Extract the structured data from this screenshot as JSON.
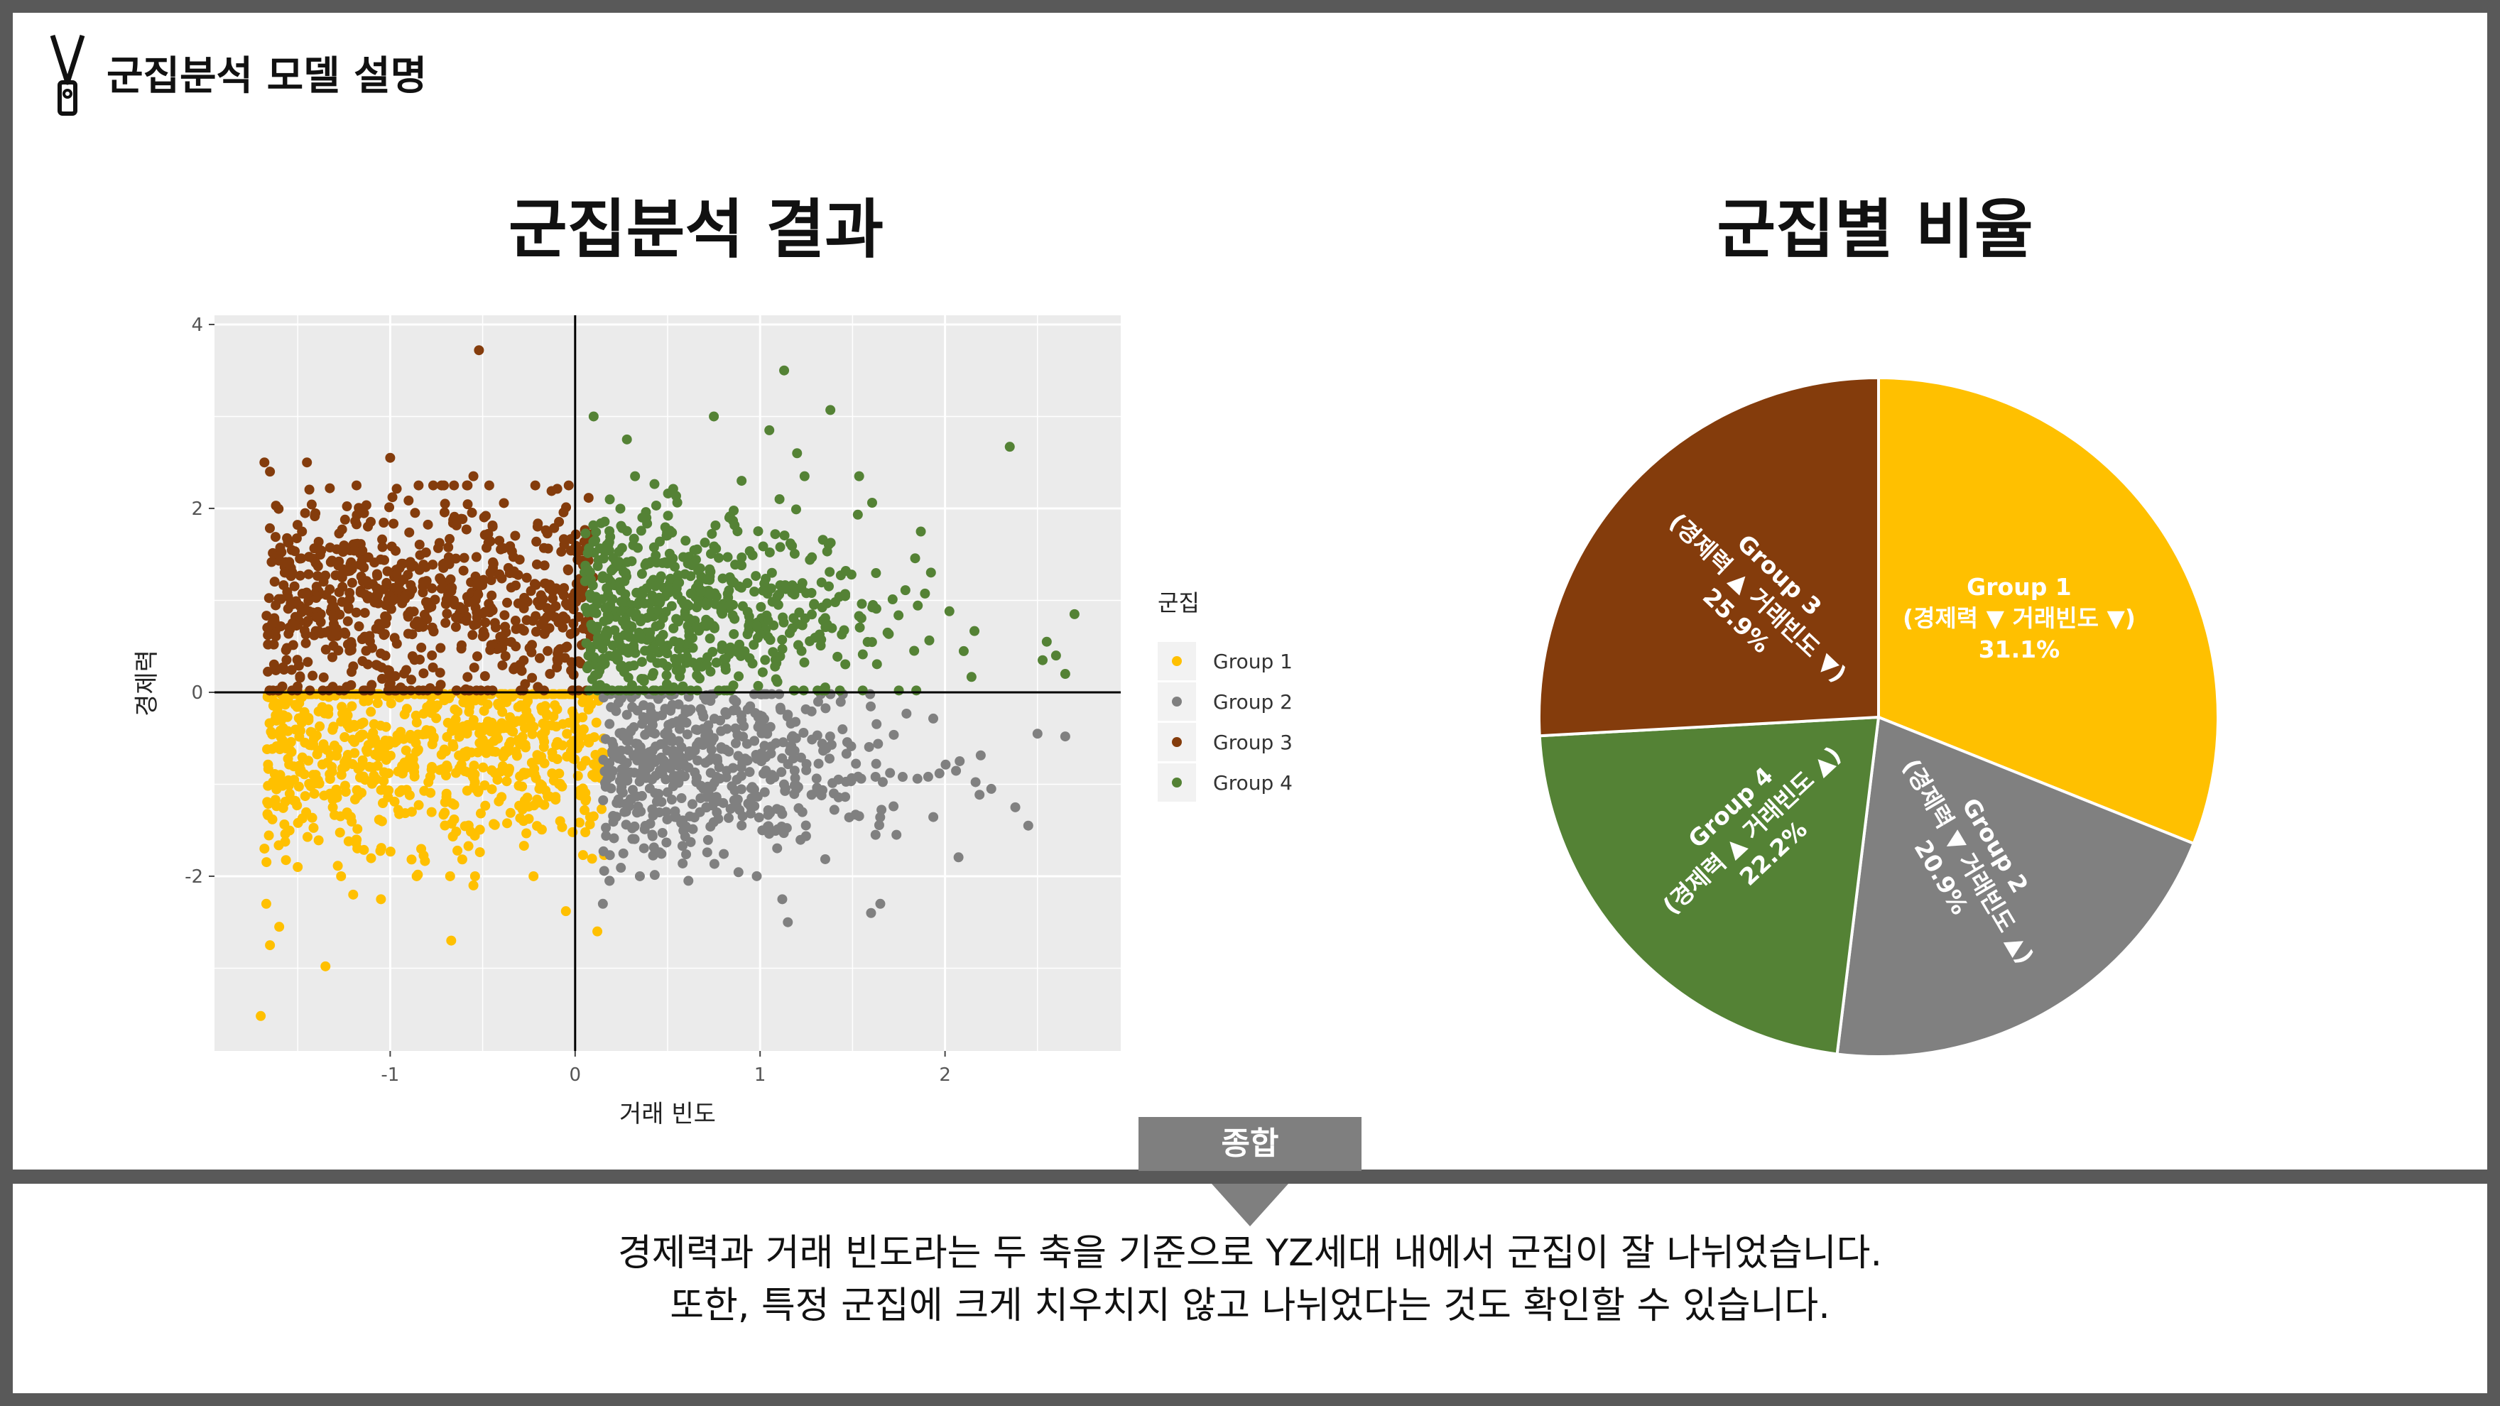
{
  "page": {
    "title": "군집분석 모델 설명"
  },
  "scatter": {
    "title": "군집분석 결과"
  },
  "pie": {
    "title": "군집별 비율"
  },
  "summary": {
    "label": "종합",
    "line1": "경제력과 거래 빈도라는 두 축을 기준으로 YZ세대 내에서 군집이 잘 나뉘었습니다.",
    "line2": "또한, 특정 군집에 크게 치우치지 않고 나뉘었다는 것도 확인할 수 있습니다."
  },
  "chart_data": [
    {
      "type": "scatter",
      "title": "군집분석 결과",
      "xlabel": "거래 빈도",
      "ylabel": "경제력",
      "xlim": [
        -1.95,
        2.95
      ],
      "ylim": [
        -3.9,
        4.1
      ],
      "x_ticks": [
        -1,
        0,
        1,
        2
      ],
      "y_ticks": [
        -2,
        0,
        2,
        4
      ],
      "grid": true,
      "legend": {
        "title": "군집",
        "position": "right"
      },
      "series": [
        {
          "name": "Group 1",
          "color": "#FFC000",
          "points": [
            [
              -1.7,
              -3.52
            ],
            [
              -1.35,
              -2.98
            ],
            [
              -1.65,
              -2.75
            ],
            [
              -1.6,
              -2.55
            ],
            [
              -0.67,
              -2.7
            ],
            [
              -1.67,
              -2.3
            ],
            [
              -1.2,
              -2.2
            ],
            [
              -1.05,
              -2.25
            ],
            [
              0.12,
              -2.6
            ],
            [
              -0.05,
              -2.38
            ],
            [
              -0.55,
              -2.1
            ],
            [
              -1.5,
              -1.9
            ],
            [
              -1.68,
              -1.7
            ]
          ]
        },
        {
          "name": "Group 2",
          "color": "#808080",
          "points": [
            [
              1.15,
              -2.5
            ],
            [
              1.12,
              -2.25
            ],
            [
              1.6,
              -2.4
            ],
            [
              1.65,
              -2.3
            ],
            [
              0.15,
              -2.3
            ],
            [
              0.35,
              -2.0
            ],
            [
              2.5,
              -0.45
            ],
            [
              2.65,
              -0.48
            ],
            [
              2.25,
              -1.05
            ],
            [
              2.38,
              -1.25
            ],
            [
              2.45,
              -1.45
            ]
          ]
        },
        {
          "name": "Group 3",
          "color": "#843C0C",
          "points": [
            [
              -0.52,
              3.72
            ],
            [
              -1.68,
              2.5
            ],
            [
              -1.45,
              2.5
            ],
            [
              -1.0,
              2.55
            ],
            [
              -0.55,
              2.35
            ],
            [
              -1.65,
              2.4
            ]
          ]
        },
        {
          "name": "Group 4",
          "color": "#548235",
          "points": [
            [
              1.13,
              3.5
            ],
            [
              0.1,
              3.0
            ],
            [
              0.75,
              3.0
            ],
            [
              1.38,
              3.07
            ],
            [
              1.05,
              2.85
            ],
            [
              2.35,
              2.67
            ],
            [
              0.28,
              2.75
            ],
            [
              0.9,
              2.3
            ],
            [
              1.2,
              2.6
            ],
            [
              2.7,
              0.85
            ],
            [
              2.55,
              0.55
            ],
            [
              2.6,
              0.4
            ],
            [
              2.65,
              0.2
            ]
          ]
        }
      ]
    },
    {
      "type": "pie",
      "title": "군집별 비율",
      "slices": [
        {
          "name": "Group 1",
          "detail": "(경제력 ▼ 거래빈도 ▼)",
          "value": 31.1,
          "label": "31.1%",
          "color": "#FFC000"
        },
        {
          "name": "Group 2",
          "detail": "(경제력 ▼ 거래빈도 ▲)",
          "value": 20.9,
          "label": "20.9%",
          "color": "#808080"
        },
        {
          "name": "Group 4",
          "detail": "(경제력 ▲ 거래빈도 ▲)",
          "value": 22.2,
          "label": "22.2%",
          "color": "#548235"
        },
        {
          "name": "Group 3",
          "detail": "(경제력 ▲ 거래빈도 ▼)",
          "value": 25.9,
          "label": "25.9%",
          "color": "#843C0C"
        }
      ]
    }
  ]
}
